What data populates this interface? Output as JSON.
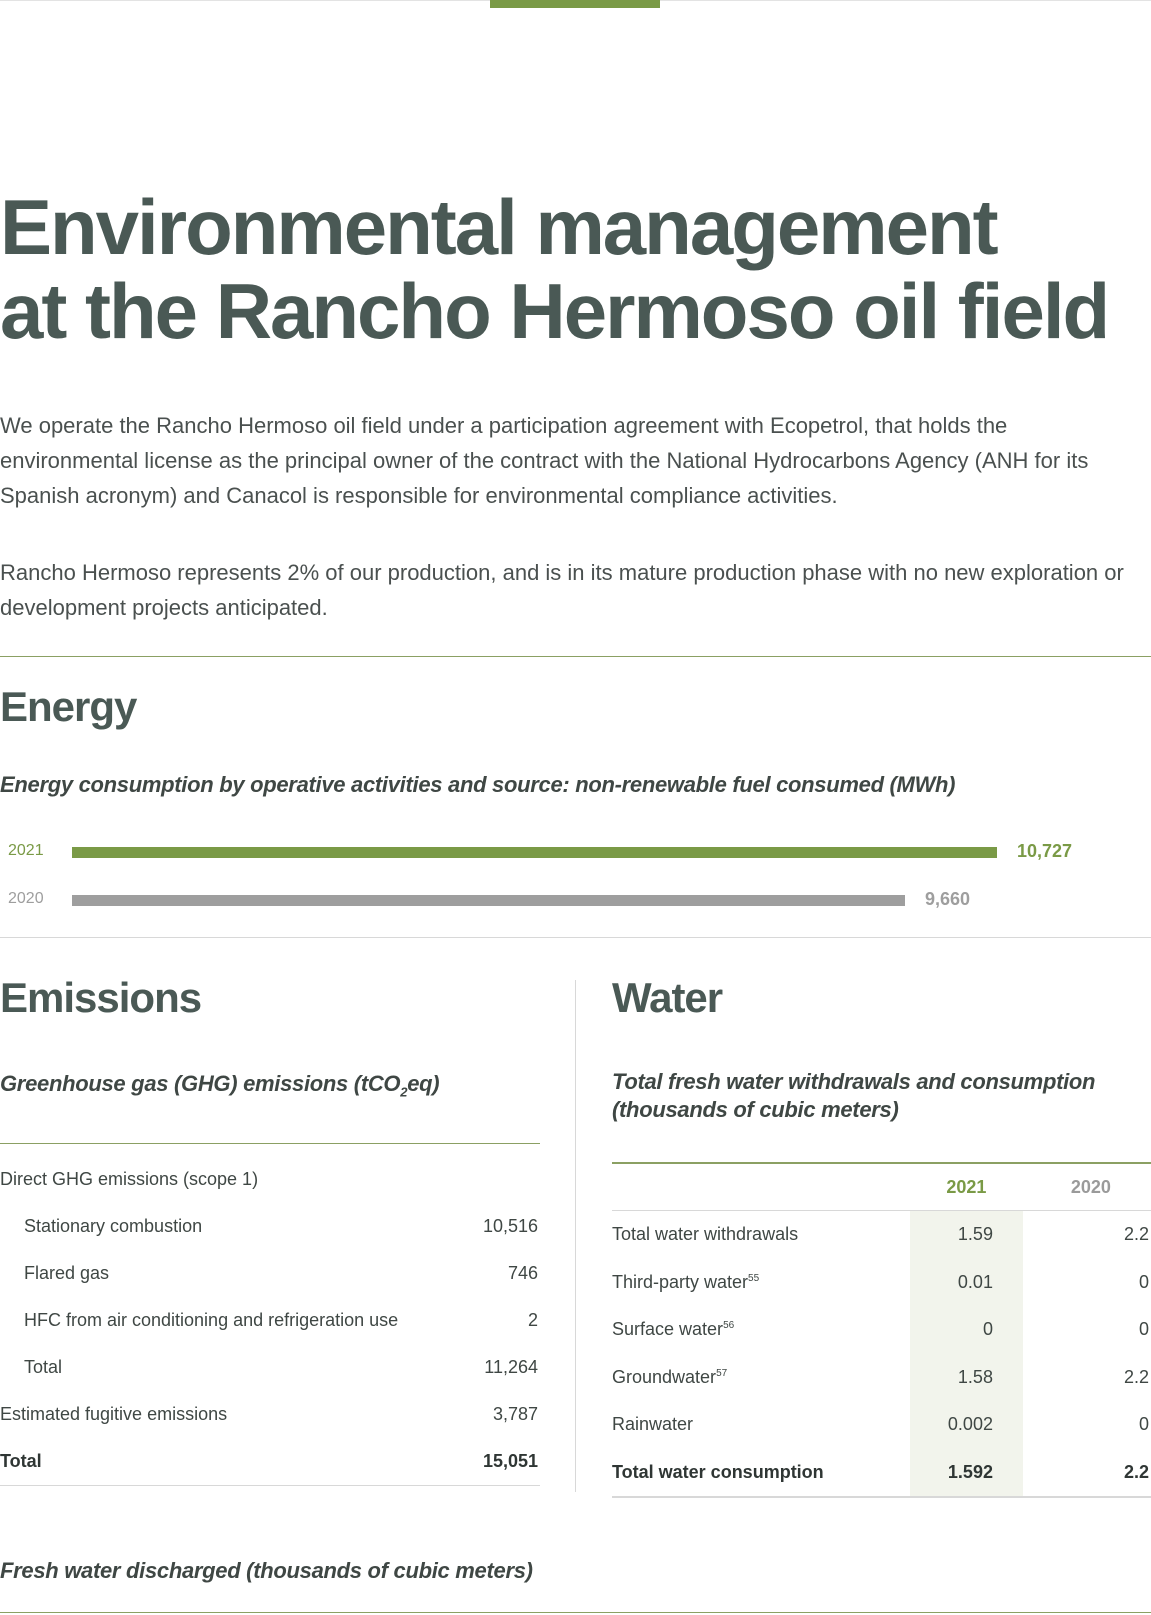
{
  "page": {
    "title_line1": "Environmental management",
    "title_line2": "at the Rancho Hermoso oil field",
    "intro_paragraph_1": "We operate the Rancho Hermoso oil field under a participation agreement with Ecopetrol, that holds the environmental license as the principal owner of the contract with the National Hydrocarbons Agency (ANH for its Spanish acronym) and Canacol is responsible for environmental compliance activities.",
    "intro_paragraph_2": "Rancho Hermoso represents 2% of our production, and is in its mature production phase with no new exploration or development projects anticipated."
  },
  "energy": {
    "heading": "Energy",
    "chart_title": "Energy consumption by operative activities and source: non-renewable fuel consumed (MWh)"
  },
  "chart_data": {
    "type": "bar",
    "orientation": "horizontal",
    "title": "Energy consumption by operative activities and source: non-renewable fuel consumed (MWh)",
    "categories": [
      "2021",
      "2020"
    ],
    "values": [
      10727,
      9660
    ],
    "value_labels": [
      "10,727",
      "9,660"
    ],
    "colors": [
      "#7a9a46",
      "#9e9e9e"
    ],
    "xlabel": "",
    "ylabel": "",
    "grid": false
  },
  "emissions": {
    "heading": "Emissions",
    "table_title_prefix": "Greenhouse gas (GHG) emissions (tCO",
    "table_title_sub": "2",
    "table_title_suffix": "eq)",
    "rows": [
      {
        "label": "Direct GHG emissions (scope 1)",
        "value": ""
      },
      {
        "label": "Stationary combustion",
        "value": "10,516"
      },
      {
        "label": "Flared gas",
        "value": "746"
      },
      {
        "label": "HFC from air conditioning and refrigeration use",
        "value": "2"
      },
      {
        "label": "Total",
        "value": "11,264"
      },
      {
        "label": "Estimated fugitive emissions",
        "value": "3,787"
      },
      {
        "label": "Total",
        "value": "15,051"
      }
    ]
  },
  "water": {
    "heading": "Water",
    "table_title_line1": "Total fresh water withdrawals and consumption",
    "table_title_line2": "(thousands of cubic meters)",
    "col_2021": "2021",
    "col_2020": "2020",
    "rows": [
      {
        "label": "Total water withdrawals",
        "note": "",
        "v2021": "1.59",
        "v2020": "2.2"
      },
      {
        "label": "Third-party water",
        "note": "55",
        "v2021": "0.01",
        "v2020": "0"
      },
      {
        "label": "Surface water",
        "note": "56",
        "v2021": "0",
        "v2020": "0"
      },
      {
        "label": "Groundwater",
        "note": "57",
        "v2021": "1.58",
        "v2020": "2.2"
      },
      {
        "label": "Rainwater",
        "note": "",
        "v2021": "0.002",
        "v2020": "0"
      },
      {
        "label": "Total water consumption",
        "note": "",
        "v2021": "1.592",
        "v2020": "2.2"
      }
    ]
  },
  "discharge": {
    "title": "Fresh water discharged (thousands of cubic meters)"
  }
}
